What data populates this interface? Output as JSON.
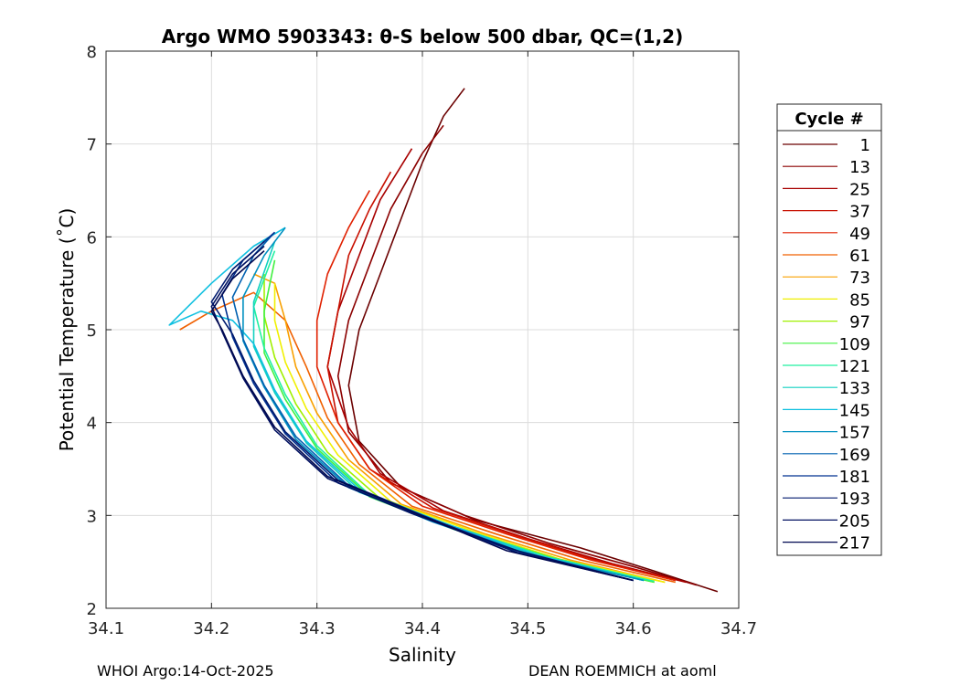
{
  "chart_data": {
    "type": "line",
    "title": "Argo WMO 5903343: θ-S below 500 dbar,  QC=(1,2)",
    "xlabel": "Salinity",
    "ylabel": "Potential Temperature (˚C)",
    "xlim": [
      34.1,
      34.7
    ],
    "ylim": [
      2,
      8
    ],
    "xticks": [
      34.1,
      34.2,
      34.3,
      34.4,
      34.5,
      34.6,
      34.7
    ],
    "yticks": [
      2,
      3,
      4,
      5,
      6,
      7,
      8
    ],
    "xtick_labels": [
      "34.1",
      "34.2",
      "34.3",
      "34.4",
      "34.5",
      "34.6",
      "34.7"
    ],
    "ytick_labels": [
      "2",
      "3",
      "4",
      "5",
      "6",
      "7",
      "8"
    ],
    "grid": true,
    "legend": {
      "title": "Cycle #",
      "position": "right",
      "entries": [
        "1",
        "13",
        "25",
        "37",
        "49",
        "61",
        "73",
        "85",
        "97",
        "109",
        "121",
        "133",
        "145",
        "157",
        "169",
        "181",
        "193",
        "205",
        "217"
      ],
      "colors": [
        "#6b0000",
        "#8b0000",
        "#a80000",
        "#c81000",
        "#e02000",
        "#f06000",
        "#f8a000",
        "#f0f000",
        "#a0f000",
        "#40f040",
        "#20f0a0",
        "#10d0c0",
        "#10c0e0",
        "#0090c0",
        "#0060b0",
        "#003090",
        "#001a6e",
        "#001060",
        "#000850"
      ]
    },
    "series": [
      {
        "name": "1",
        "color": "#6b0000",
        "x": [
          34.68,
          34.62,
          34.55,
          34.45,
          34.38,
          34.34,
          34.33,
          34.34,
          34.36,
          34.38,
          34.4,
          34.42,
          34.44
        ],
        "y": [
          2.18,
          2.4,
          2.65,
          2.95,
          3.3,
          3.8,
          4.4,
          5.0,
          5.6,
          6.2,
          6.8,
          7.3,
          7.6
        ]
      },
      {
        "name": "13",
        "color": "#8b0000",
        "x": [
          34.66,
          34.6,
          34.52,
          34.44,
          34.37,
          34.33,
          34.32,
          34.33,
          34.35,
          34.37,
          34.4,
          34.42
        ],
        "y": [
          2.25,
          2.45,
          2.7,
          3.0,
          3.35,
          3.9,
          4.5,
          5.1,
          5.7,
          6.3,
          6.9,
          7.2
        ]
      },
      {
        "name": "25",
        "color": "#a80000",
        "x": [
          34.65,
          34.58,
          34.5,
          34.42,
          34.36,
          34.33,
          34.31,
          34.32,
          34.34,
          34.36,
          34.39
        ],
        "y": [
          2.28,
          2.48,
          2.75,
          3.05,
          3.45,
          3.95,
          4.6,
          5.2,
          5.8,
          6.4,
          6.95
        ]
      },
      {
        "name": "37",
        "color": "#c81000",
        "x": [
          34.64,
          34.57,
          34.49,
          34.41,
          34.35,
          34.32,
          34.31,
          34.32,
          34.33,
          34.35,
          34.37
        ],
        "y": [
          2.3,
          2.5,
          2.78,
          3.08,
          3.5,
          4.0,
          4.6,
          5.2,
          5.8,
          6.3,
          6.7
        ]
      },
      {
        "name": "49",
        "color": "#e02000",
        "x": [
          34.64,
          34.56,
          34.48,
          34.4,
          34.35,
          34.32,
          34.3,
          34.3,
          34.31,
          34.33,
          34.35
        ],
        "y": [
          2.3,
          2.52,
          2.8,
          3.1,
          3.5,
          4.0,
          4.6,
          5.1,
          5.6,
          6.1,
          6.5
        ]
      },
      {
        "name": "61",
        "color": "#f06000",
        "x": [
          34.64,
          34.55,
          34.47,
          34.39,
          34.34,
          34.31,
          34.29,
          34.27,
          34.24,
          34.2,
          34.17
        ],
        "y": [
          2.28,
          2.52,
          2.8,
          3.1,
          3.55,
          4.05,
          4.6,
          5.1,
          5.4,
          5.2,
          5.0
        ]
      },
      {
        "name": "73",
        "color": "#f8a000",
        "x": [
          34.63,
          34.54,
          34.46,
          34.38,
          34.33,
          34.3,
          34.28,
          34.27,
          34.26,
          34.24
        ],
        "y": [
          2.28,
          2.52,
          2.8,
          3.12,
          3.6,
          4.1,
          4.6,
          5.1,
          5.5,
          5.6
        ]
      },
      {
        "name": "85",
        "color": "#f0f000",
        "x": [
          34.63,
          34.53,
          34.45,
          34.37,
          34.32,
          34.29,
          34.27,
          34.26,
          34.26
        ],
        "y": [
          2.28,
          2.53,
          2.82,
          3.15,
          3.65,
          4.15,
          4.65,
          5.1,
          5.5
        ]
      },
      {
        "name": "97",
        "color": "#a0f000",
        "x": [
          34.62,
          34.53,
          34.44,
          34.36,
          34.31,
          34.28,
          34.26,
          34.25,
          34.25
        ],
        "y": [
          2.28,
          2.53,
          2.83,
          3.18,
          3.68,
          4.2,
          4.7,
          5.15,
          5.6
        ]
      },
      {
        "name": "109",
        "color": "#40f040",
        "x": [
          34.62,
          34.52,
          34.43,
          34.35,
          34.3,
          34.27,
          34.25,
          34.25,
          34.26
        ],
        "y": [
          2.28,
          2.53,
          2.85,
          3.2,
          3.72,
          4.25,
          4.75,
          5.2,
          5.75
        ]
      },
      {
        "name": "121",
        "color": "#20f0a0",
        "x": [
          34.62,
          34.52,
          34.43,
          34.35,
          34.3,
          34.27,
          34.25,
          34.24,
          34.26
        ],
        "y": [
          2.29,
          2.55,
          2.88,
          3.22,
          3.75,
          4.3,
          4.8,
          5.25,
          5.85
        ]
      },
      {
        "name": "133",
        "color": "#10d0c0",
        "x": [
          34.61,
          34.51,
          34.42,
          34.34,
          34.29,
          34.26,
          34.24,
          34.24,
          34.26
        ],
        "y": [
          2.3,
          2.56,
          2.9,
          3.25,
          3.78,
          4.32,
          4.82,
          5.3,
          5.95
        ]
      },
      {
        "name": "145",
        "color": "#10c0e0",
        "x": [
          34.61,
          34.51,
          34.42,
          34.34,
          34.29,
          34.26,
          34.24,
          34.22,
          34.19,
          34.16,
          34.2,
          34.24,
          34.27
        ],
        "y": [
          2.3,
          2.57,
          2.92,
          3.28,
          3.8,
          4.35,
          4.85,
          5.1,
          5.2,
          5.05,
          5.5,
          5.9,
          6.1
        ]
      },
      {
        "name": "157",
        "color": "#0090c0",
        "x": [
          34.61,
          34.5,
          34.41,
          34.33,
          34.28,
          34.25,
          34.23,
          34.23,
          34.25,
          34.27
        ],
        "y": [
          2.3,
          2.58,
          2.93,
          3.3,
          3.82,
          4.38,
          4.88,
          5.35,
          5.8,
          6.1
        ]
      },
      {
        "name": "169",
        "color": "#0060b0",
        "x": [
          34.6,
          34.5,
          34.41,
          34.33,
          34.28,
          34.25,
          34.23,
          34.22,
          34.24,
          34.26
        ],
        "y": [
          2.3,
          2.58,
          2.95,
          3.32,
          3.85,
          4.4,
          4.9,
          5.35,
          5.8,
          6.05
        ]
      },
      {
        "name": "181",
        "color": "#003090",
        "x": [
          34.6,
          34.49,
          34.4,
          34.32,
          34.27,
          34.24,
          34.22,
          34.21,
          34.23,
          34.26
        ],
        "y": [
          2.3,
          2.6,
          2.98,
          3.35,
          3.88,
          4.42,
          4.92,
          5.38,
          5.75,
          6.05
        ]
      },
      {
        "name": "193",
        "color": "#001a6e",
        "x": [
          34.6,
          34.49,
          34.4,
          34.32,
          34.27,
          34.24,
          34.22,
          34.2,
          34.22,
          34.25
        ],
        "y": [
          2.3,
          2.6,
          3.0,
          3.38,
          3.9,
          4.45,
          4.95,
          5.3,
          5.65,
          5.95
        ]
      },
      {
        "name": "205",
        "color": "#001060",
        "x": [
          34.6,
          34.49,
          34.39,
          34.31,
          34.26,
          34.23,
          34.21,
          34.2,
          34.22,
          34.25
        ],
        "y": [
          2.3,
          2.62,
          3.02,
          3.4,
          3.92,
          4.48,
          4.98,
          5.25,
          5.6,
          5.9
        ]
      },
      {
        "name": "217",
        "color": "#000850",
        "x": [
          34.6,
          34.48,
          34.39,
          34.31,
          34.26,
          34.23,
          34.21,
          34.2,
          34.22,
          34.25
        ],
        "y": [
          2.3,
          2.62,
          3.04,
          3.42,
          3.95,
          4.5,
          5.0,
          5.2,
          5.55,
          5.85
        ]
      }
    ]
  },
  "footer": {
    "left": "WHOI Argo:14-Oct-2025",
    "right": "DEAN ROEMMICH at aoml"
  }
}
